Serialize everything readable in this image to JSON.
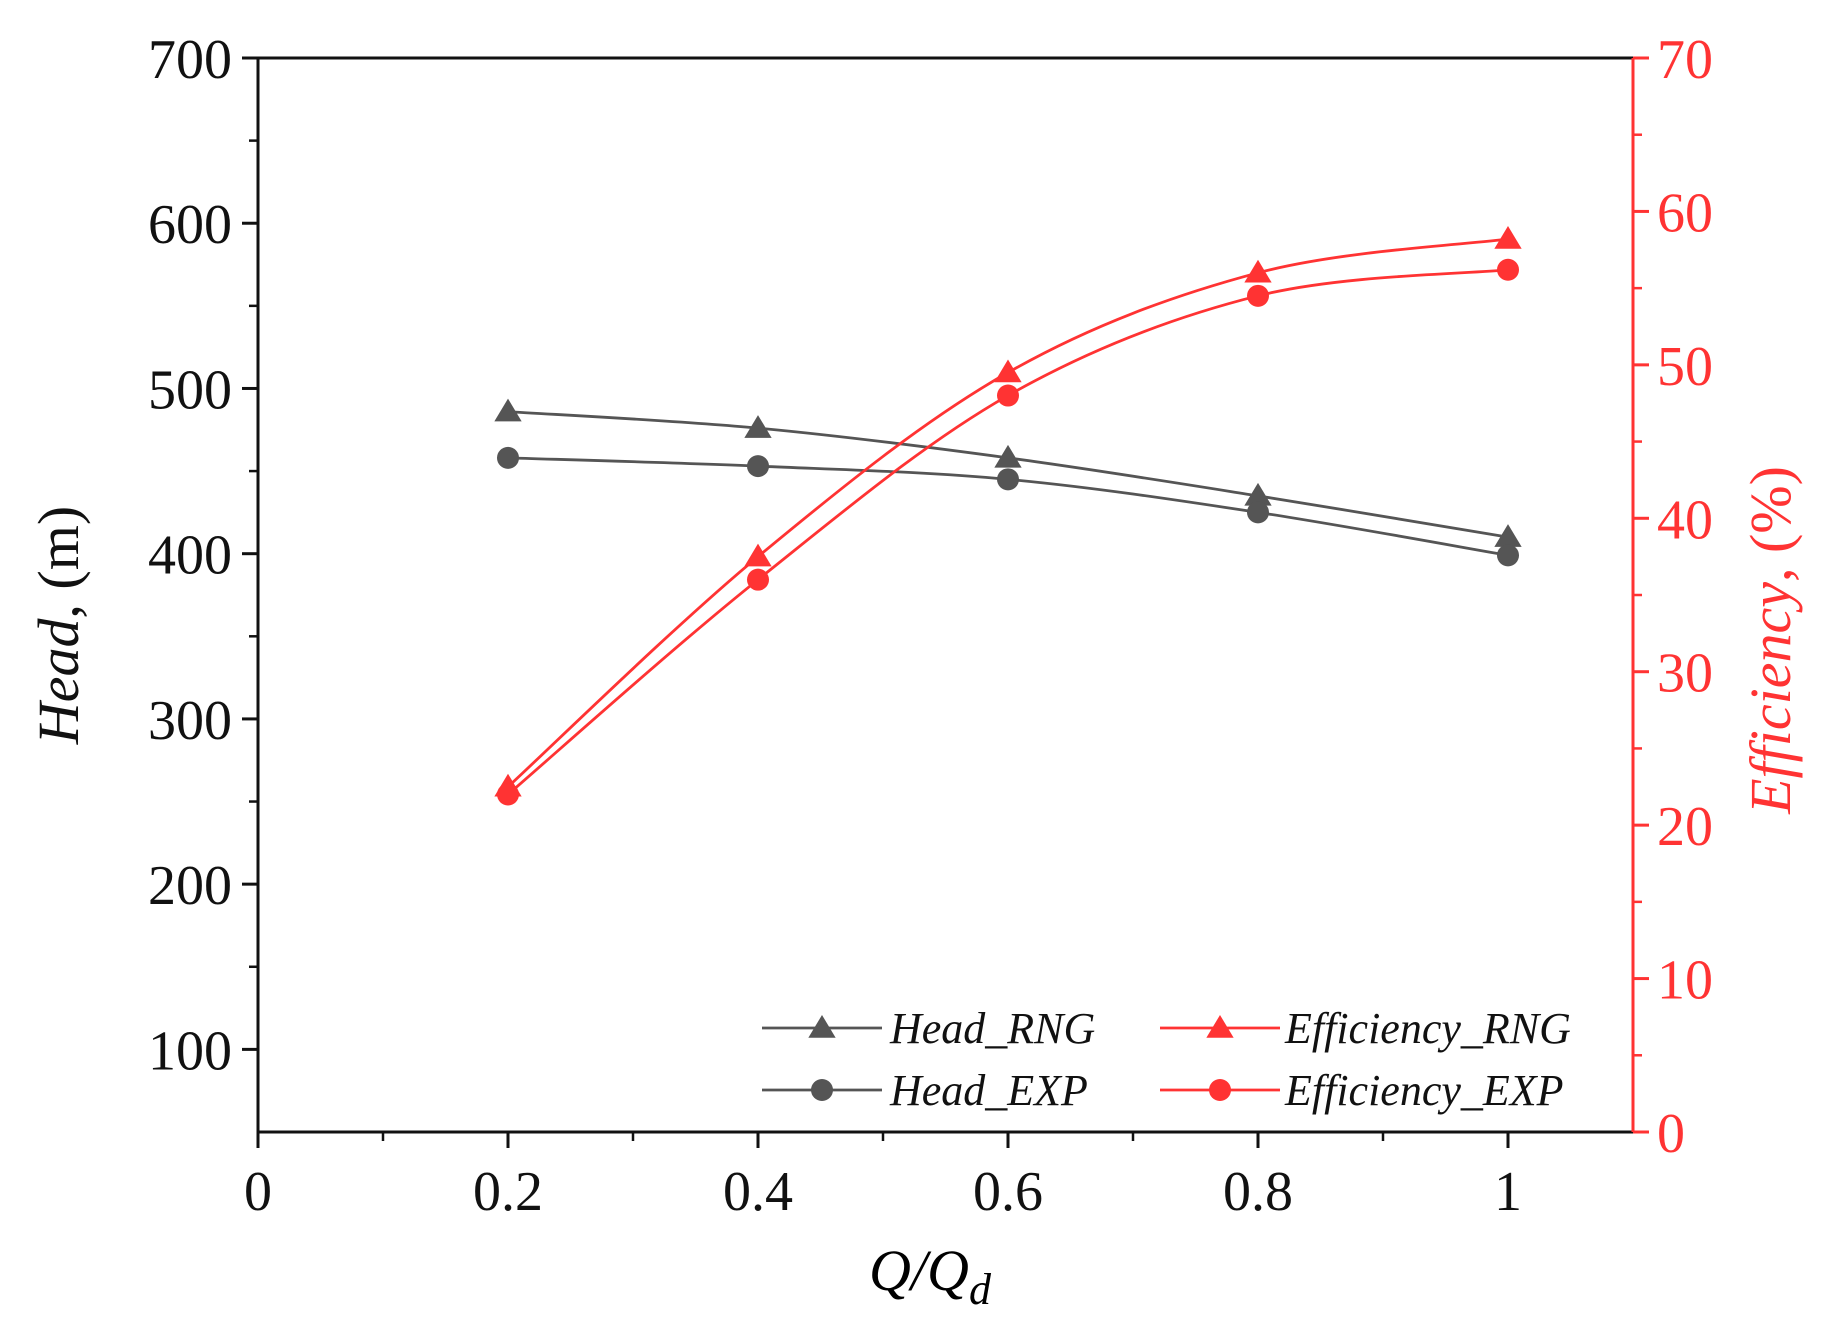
{
  "chart_data": {
    "type": "line",
    "title": "",
    "x": [
      0.2,
      0.4,
      0.6,
      0.8,
      1.0
    ],
    "xlabel": {
      "main": "Q/Q",
      "sub": "d"
    },
    "ylabel_left": {
      "italic": "Head",
      "rest": ", (m)"
    },
    "ylabel_right": {
      "italic": "Efficiency",
      "rest": ", (%)"
    },
    "xlim": [
      0,
      1.1
    ],
    "ylim_left": [
      50,
      700
    ],
    "ylim_right": [
      0,
      70
    ],
    "xticks": [
      0,
      0.2,
      0.4,
      0.6,
      0.8,
      1
    ],
    "xtick_labels": [
      "0",
      "0.2",
      "0.4",
      "0.6",
      "0.8",
      "1"
    ],
    "yticks_left": [
      100,
      200,
      300,
      400,
      500,
      600,
      700
    ],
    "yticks_left_labels": [
      "100",
      "200",
      "300",
      "400",
      "500",
      "600",
      "700"
    ],
    "yticks_right": [
      0,
      10,
      20,
      30,
      40,
      50,
      60,
      70
    ],
    "yticks_right_labels": [
      "0",
      "10",
      "20",
      "30",
      "40",
      "50",
      "60",
      "70"
    ],
    "series": [
      {
        "name": "Head_RNG",
        "axis": "left",
        "marker": "triangle",
        "color": "#555555",
        "values": [
          486,
          476,
          458,
          435,
          410
        ]
      },
      {
        "name": "Head_EXP",
        "axis": "left",
        "marker": "circle",
        "color": "#555555",
        "values": [
          458,
          453,
          445,
          425,
          399
        ]
      },
      {
        "name": "Efficiency_RNG",
        "axis": "right",
        "marker": "triangle",
        "color": "#ff3333",
        "values": [
          22.5,
          37.5,
          49.5,
          56,
          58.2
        ]
      },
      {
        "name": "Efficiency_EXP",
        "axis": "right",
        "marker": "circle",
        "color": "#ff3333",
        "values": [
          22,
          36,
          48,
          54.5,
          56.2
        ]
      }
    ],
    "legend_position": "bottom-right",
    "grid": false,
    "axis_colors": {
      "left": "#111111",
      "right": "#ff3333"
    }
  }
}
